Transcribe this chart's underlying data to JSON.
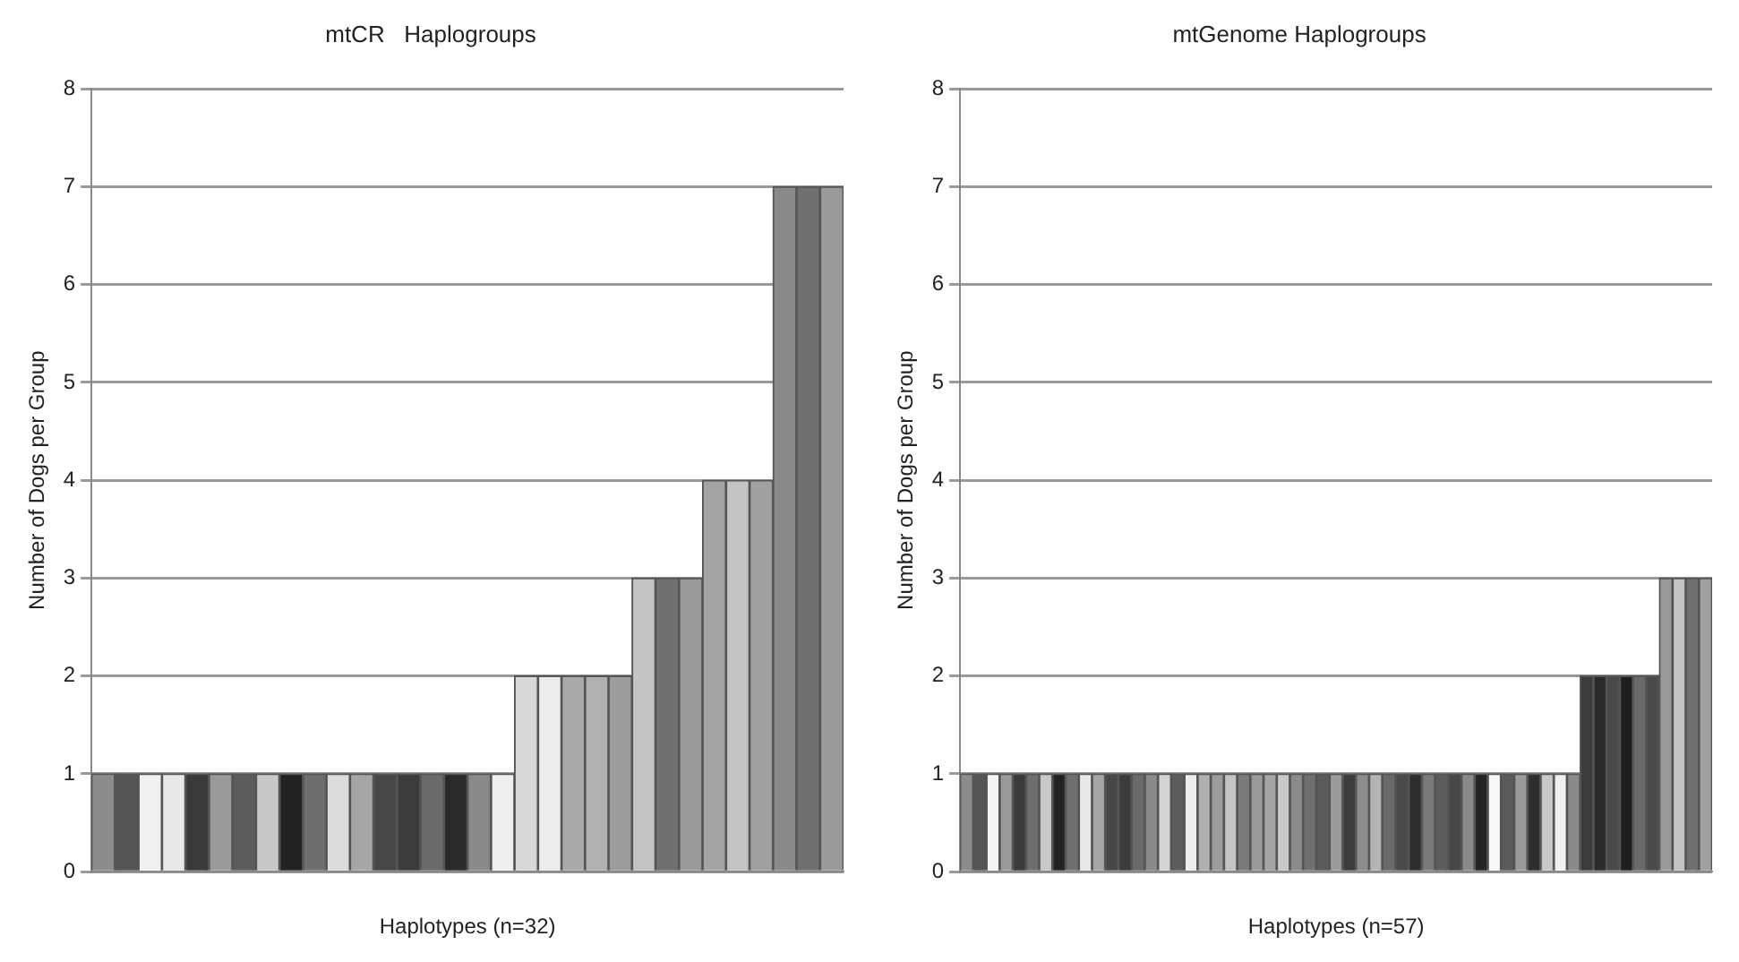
{
  "chart_data": [
    {
      "type": "bar",
      "title": "mtCR   Haplogroups",
      "xlabel": "Haplotypes (n=32)",
      "ylabel": "Number of Dogs per Group",
      "categories": [
        null,
        null,
        null,
        null,
        null,
        null,
        null,
        null,
        null,
        null,
        null,
        null,
        null,
        null,
        null,
        null,
        null,
        null,
        null,
        null,
        null,
        null,
        null,
        null,
        null,
        null,
        null,
        null,
        null,
        null,
        null,
        null
      ],
      "values": [
        1,
        1,
        1,
        1,
        1,
        1,
        1,
        1,
        1,
        1,
        1,
        1,
        1,
        1,
        1,
        1,
        1,
        1,
        2,
        2,
        2,
        2,
        2,
        3,
        3,
        3,
        4,
        4,
        4,
        7,
        7,
        7
      ],
      "colors": [
        "#8c8c8c",
        "#555555",
        "#f0f0f0",
        "#e8e8e8",
        "#3a3a3a",
        "#9a9a9a",
        "#5c5c5c",
        "#c8c8c8",
        "#222222",
        "#6e6e6e",
        "#dcdcdc",
        "#a6a6a6",
        "#474747",
        "#3c3c3c",
        "#6a6a6a",
        "#2a2a2a",
        "#8a8a8a",
        "#eeeeee",
        "#d8d8d8",
        "#ececec",
        "#aaaaaa",
        "#b0b0b0",
        "#9c9c9c",
        "#c4c4c4",
        "#707070",
        "#9a9a9a",
        "#a4a4a4",
        "#c4c4c4",
        "#a0a0a0",
        "#8a8a8a",
        "#707070",
        "#9a9a9a"
      ],
      "ylim": [
        0,
        8
      ],
      "yticks": [
        0,
        1,
        2,
        3,
        4,
        5,
        6,
        7,
        8
      ],
      "grid": "y"
    },
    {
      "type": "bar",
      "title": "mtGenome Haplogroups",
      "xlabel": "Haplotypes (n=57)",
      "ylabel": "Number of Dogs per Group",
      "categories": [
        null,
        null,
        null,
        null,
        null,
        null,
        null,
        null,
        null,
        null,
        null,
        null,
        null,
        null,
        null,
        null,
        null,
        null,
        null,
        null,
        null,
        null,
        null,
        null,
        null,
        null,
        null,
        null,
        null,
        null,
        null,
        null,
        null,
        null,
        null,
        null,
        null,
        null,
        null,
        null,
        null,
        null,
        null,
        null,
        null,
        null,
        null,
        null,
        null,
        null,
        null,
        null,
        null,
        null,
        null,
        null,
        null
      ],
      "values": [
        1,
        1,
        1,
        1,
        1,
        1,
        1,
        1,
        1,
        1,
        1,
        1,
        1,
        1,
        1,
        1,
        1,
        1,
        1,
        1,
        1,
        1,
        1,
        1,
        1,
        1,
        1,
        1,
        1,
        1,
        1,
        1,
        1,
        1,
        1,
        1,
        1,
        1,
        1,
        1,
        1,
        1,
        1,
        1,
        1,
        1,
        1,
        2,
        2,
        2,
        2,
        2,
        2,
        3,
        3,
        3,
        3
      ],
      "colors": [
        "#8c8c8c",
        "#555555",
        "#f4f4f4",
        "#9a9a9a",
        "#3a3a3a",
        "#6e6e6e",
        "#c8c8c8",
        "#222222",
        "#707070",
        "#e8e8e8",
        "#a6a6a6",
        "#474747",
        "#3c3c3c",
        "#6a6a6a",
        "#8a8a8a",
        "#d4d4d4",
        "#5c5c5c",
        "#ececec",
        "#b0b0b0",
        "#9c9c9c",
        "#c4c4c4",
        "#7a7a7a",
        "#9a9a9a",
        "#a4a4a4",
        "#c8c8c8",
        "#8a8a8a",
        "#707070",
        "#5a5a5a",
        "#9a9a9a",
        "#3c3c3c",
        "#8c8c8c",
        "#b4b4b4",
        "#6a6a6a",
        "#4a4a4a",
        "#2e2e2e",
        "#7a7a7a",
        "#5c5c5c",
        "#474747",
        "#8a8a8a",
        "#242424",
        "#f8f8f8",
        "#5a5a5a",
        "#9a9a9a",
        "#2e2e2e",
        "#c8c8c8",
        "#f0f0f0",
        "#8a8a8a",
        "#3c3c3c",
        "#2a2a2a",
        "#4a4a4a",
        "#1e1e1e",
        "#6a6a6a",
        "#4a4a4a",
        "#9a9a9a",
        "#c4c4c4",
        "#707070",
        "#a0a0a0"
      ],
      "ylim": [
        0,
        8
      ],
      "yticks": [
        0,
        1,
        2,
        3,
        4,
        5,
        6,
        7,
        8
      ],
      "grid": "y"
    }
  ]
}
